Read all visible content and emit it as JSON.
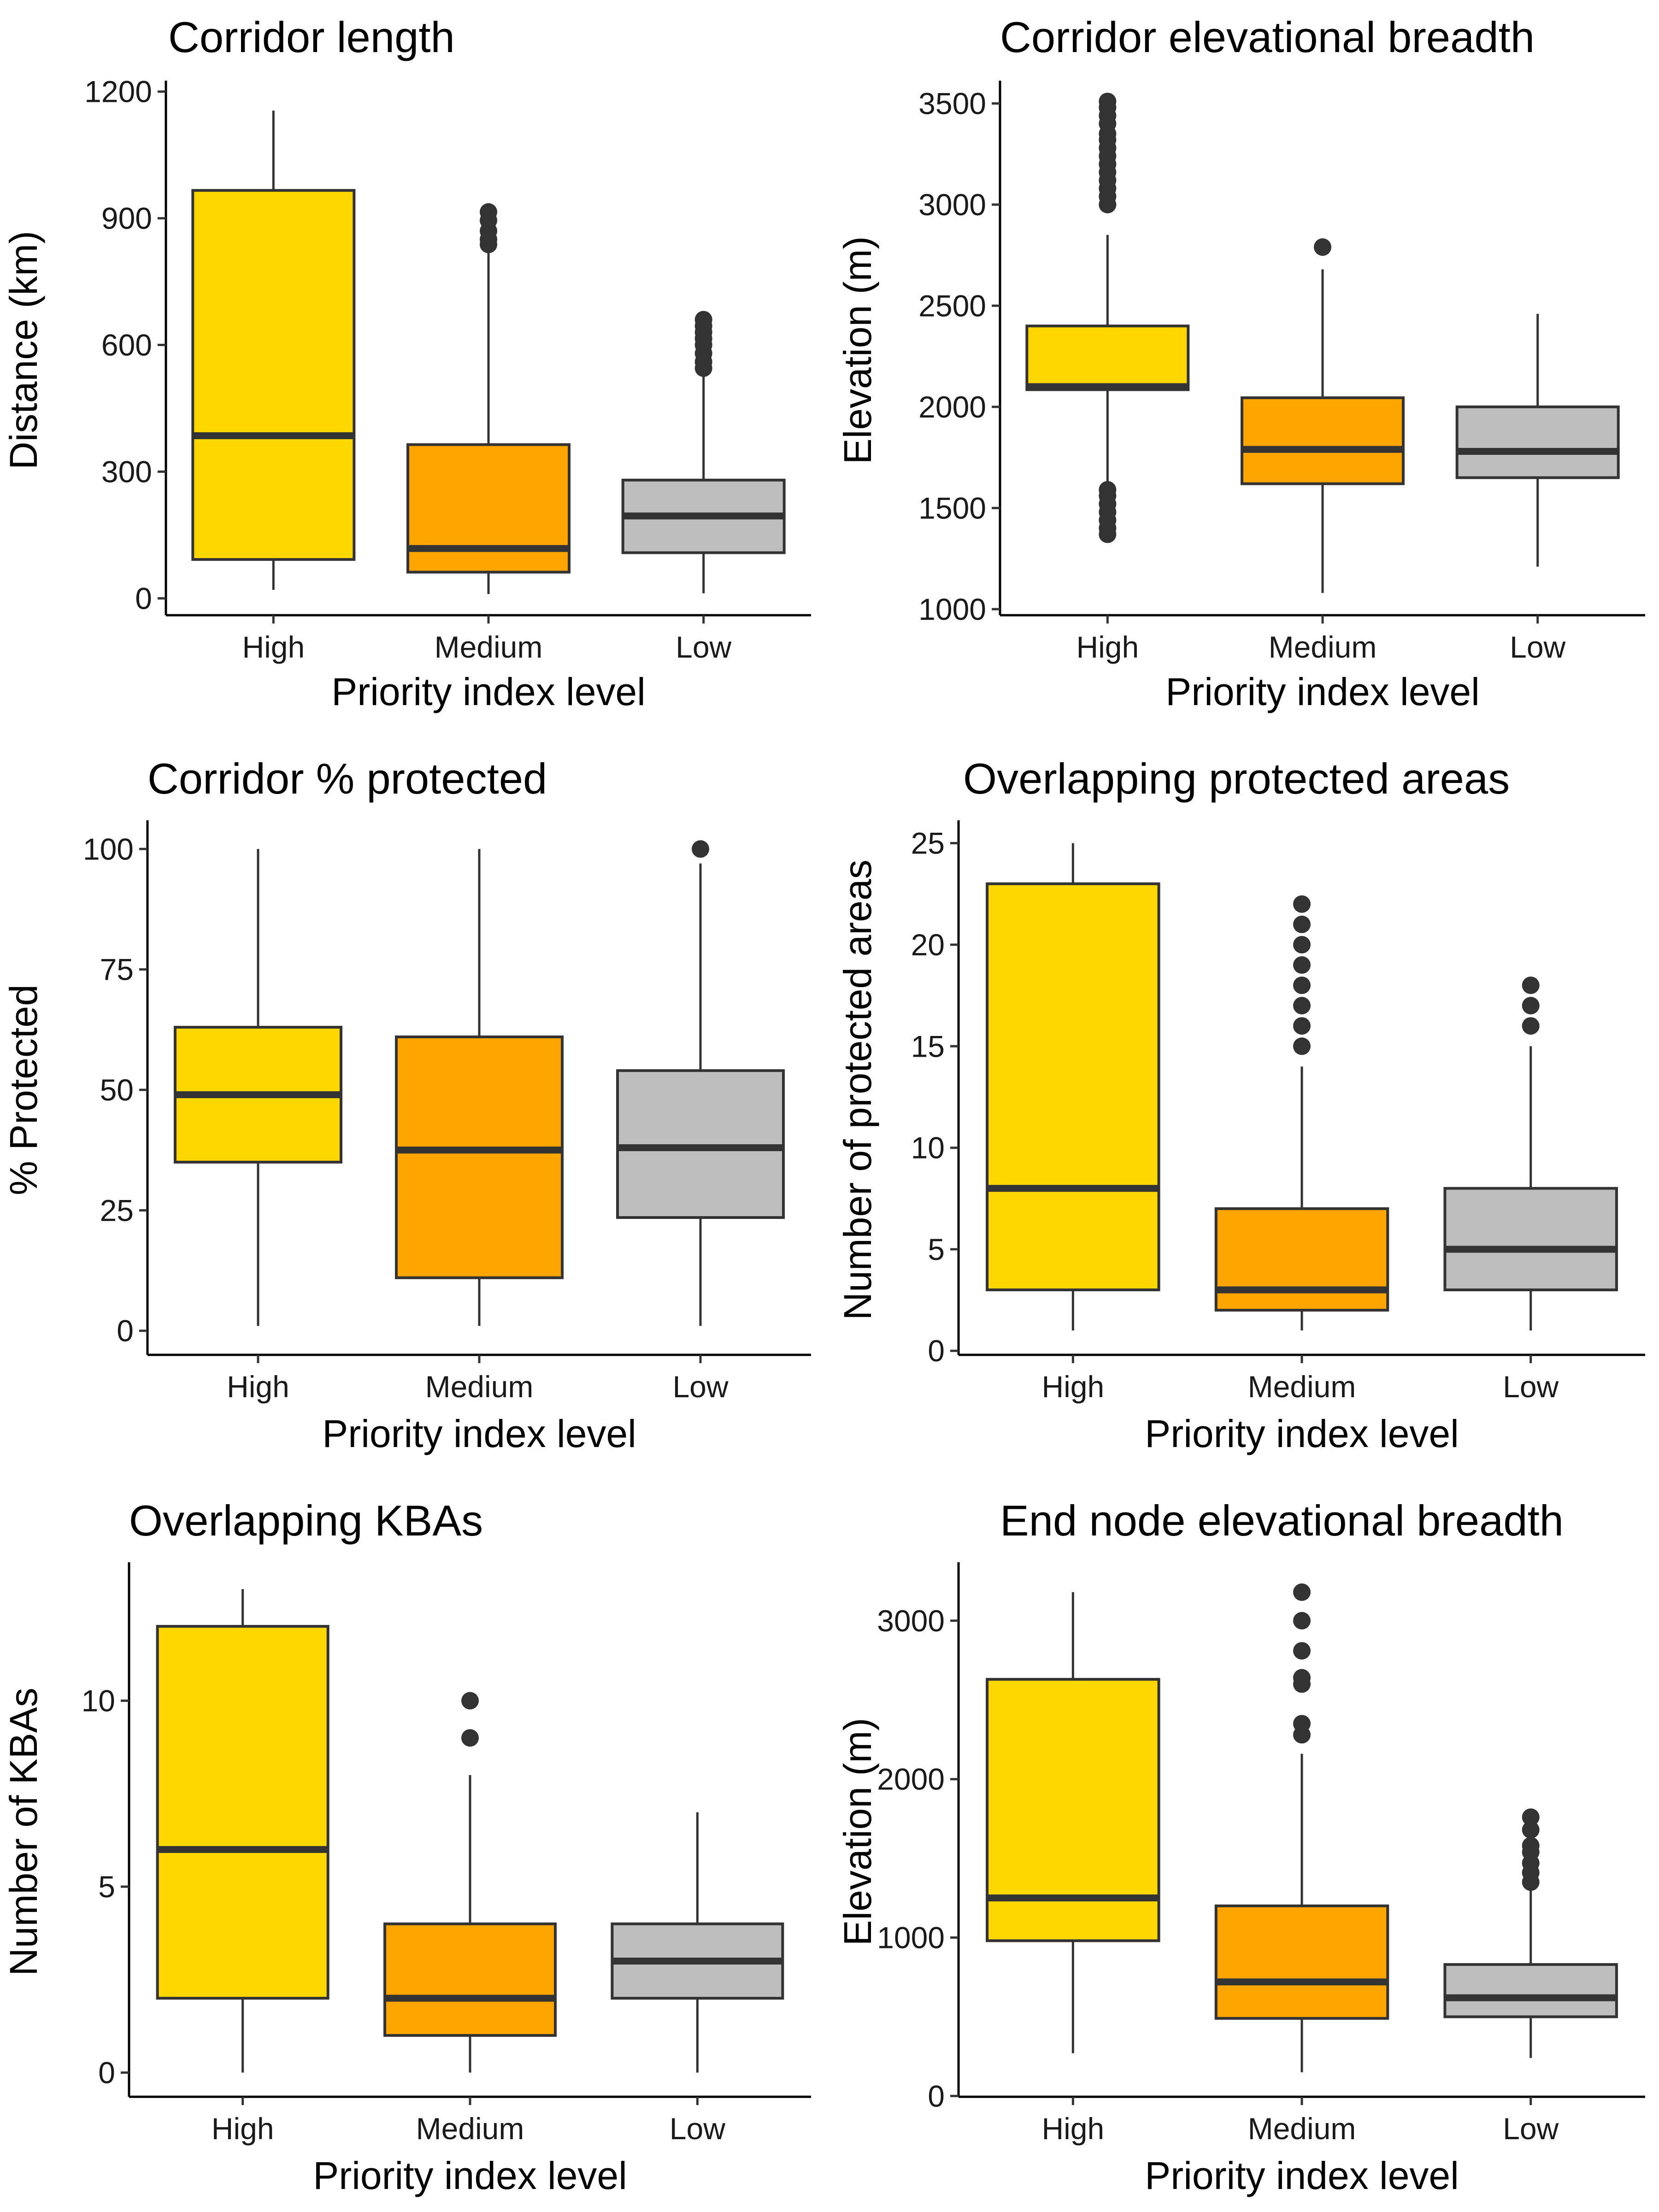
{
  "chart_data": [
    {
      "type": "box",
      "title": "Corridor length",
      "xlabel": "Priority index level",
      "ylabel": "Distance (km)",
      "categories": [
        "High",
        "Medium",
        "Low"
      ],
      "ylim": [
        -40,
        1215
      ],
      "yticks": [
        0,
        300,
        600,
        900,
        1200
      ],
      "boxes": [
        {
          "category": "High",
          "whisker_low": 20,
          "q1": 92,
          "median": 385,
          "q3": 966,
          "whisker_high": 1155,
          "outliers": []
        },
        {
          "category": "Medium",
          "whisker_low": 10,
          "q1": 62,
          "median": 118,
          "q3": 364,
          "whisker_high": 822,
          "outliers": [
            838,
            850,
            870,
            895,
            915
          ]
        },
        {
          "category": "Low",
          "whisker_low": 12,
          "q1": 108,
          "median": 195,
          "q3": 280,
          "whisker_high": 530,
          "outliers": [
            545,
            560,
            580,
            600,
            615,
            630,
            645,
            660
          ]
        }
      ]
    },
    {
      "type": "box",
      "title": "Corridor elevational breadth",
      "xlabel": "Priority index level",
      "ylabel": "Elevation (m)",
      "categories": [
        "High",
        "Medium",
        "Low"
      ],
      "ylim": [
        970,
        3590
      ],
      "yticks": [
        1000,
        1500,
        2000,
        2500,
        3000,
        3500
      ],
      "boxes": [
        {
          "category": "High",
          "whisker_low": 1620,
          "q1": 2085,
          "median": 2100,
          "q3": 2400,
          "whisker_high": 2850,
          "outliers": [
            1370,
            1400,
            1440,
            1480,
            1520,
            1560,
            1590,
            3000,
            3040,
            3080,
            3120,
            3160,
            3200,
            3240,
            3280,
            3320,
            3350,
            3400,
            3440,
            3480,
            3510
          ]
        },
        {
          "category": "Medium",
          "whisker_low": 1080,
          "q1": 1620,
          "median": 1790,
          "q3": 2045,
          "whisker_high": 2680,
          "outliers": [
            2790
          ]
        },
        {
          "category": "Low",
          "whisker_low": 1210,
          "q1": 1650,
          "median": 1780,
          "q3": 2000,
          "whisker_high": 2460,
          "outliers": []
        }
      ]
    },
    {
      "type": "box",
      "title": "Corridor % protected",
      "xlabel": "Priority index level",
      "ylabel": "% Protected",
      "categories": [
        "High",
        "Medium",
        "Low"
      ],
      "ylim": [
        -5,
        105
      ],
      "yticks": [
        0,
        25,
        50,
        75,
        100
      ],
      "boxes": [
        {
          "category": "High",
          "whisker_low": 1,
          "q1": 35,
          "median": 49,
          "q3": 63,
          "whisker_high": 100,
          "outliers": []
        },
        {
          "category": "Medium",
          "whisker_low": 1,
          "q1": 11,
          "median": 37.5,
          "q3": 61,
          "whisker_high": 100,
          "outliers": []
        },
        {
          "category": "Low",
          "whisker_low": 1,
          "q1": 23.5,
          "median": 38,
          "q3": 54,
          "whisker_high": 97,
          "outliers": [
            100
          ]
        }
      ]
    },
    {
      "type": "box",
      "title": "Overlapping protected areas",
      "xlabel": "Priority index level",
      "ylabel": "Number of protected areas",
      "categories": [
        "High",
        "Medium",
        "Low"
      ],
      "ylim": [
        -0.2,
        25.9
      ],
      "yticks": [
        0,
        5,
        10,
        15,
        20,
        25
      ],
      "boxes": [
        {
          "category": "High",
          "whisker_low": 1,
          "q1": 3,
          "median": 8,
          "q3": 23,
          "whisker_high": 25,
          "outliers": []
        },
        {
          "category": "Medium",
          "whisker_low": 1,
          "q1": 2,
          "median": 3,
          "q3": 7,
          "whisker_high": 14,
          "outliers": [
            15,
            16,
            17,
            18,
            19,
            20,
            21,
            22
          ]
        },
        {
          "category": "Low",
          "whisker_low": 1,
          "q1": 3,
          "median": 5,
          "q3": 8,
          "whisker_high": 15,
          "outliers": [
            16,
            17,
            18
          ]
        }
      ]
    },
    {
      "type": "box",
      "title": "Overlapping KBAs",
      "xlabel": "Priority index level",
      "ylabel": "Number of KBAs",
      "categories": [
        "High",
        "Medium",
        "Low"
      ],
      "ylim": [
        -0.65,
        13.6
      ],
      "yticks": [
        0,
        5,
        10
      ],
      "boxes": [
        {
          "category": "High",
          "whisker_low": 0,
          "q1": 2,
          "median": 6,
          "q3": 12,
          "whisker_high": 13,
          "outliers": []
        },
        {
          "category": "Medium",
          "whisker_low": 0,
          "q1": 1,
          "median": 2,
          "q3": 4,
          "whisker_high": 8,
          "outliers": [
            9,
            10
          ]
        },
        {
          "category": "Low",
          "whisker_low": 0,
          "q1": 2,
          "median": 3,
          "q3": 4,
          "whisker_high": 7,
          "outliers": []
        }
      ]
    },
    {
      "type": "box",
      "title": "End node elevational breadth",
      "xlabel": "Priority index level",
      "ylabel": "Elevation (m)",
      "categories": [
        "High",
        "Medium",
        "Low"
      ],
      "ylim": [
        -5,
        3340
      ],
      "yticks": [
        0,
        1000,
        2000,
        3000
      ],
      "boxes": [
        {
          "category": "High",
          "whisker_low": 270,
          "q1": 980,
          "median": 1250,
          "q3": 2630,
          "whisker_high": 3180,
          "outliers": []
        },
        {
          "category": "Medium",
          "whisker_low": 150,
          "q1": 490,
          "median": 720,
          "q3": 1200,
          "whisker_high": 2160,
          "outliers": [
            2280,
            2350,
            2600,
            2640,
            2810,
            3000,
            3180
          ]
        },
        {
          "category": "Low",
          "whisker_low": 240,
          "q1": 500,
          "median": 620,
          "q3": 830,
          "whisker_high": 1310,
          "outliers": [
            1350,
            1410,
            1470,
            1540,
            1580,
            1680,
            1760
          ]
        }
      ]
    }
  ],
  "colors": {
    "High": "#FFD700",
    "Medium": "#FFA500",
    "Low": "#BEBEBE",
    "outline": "#333333"
  }
}
